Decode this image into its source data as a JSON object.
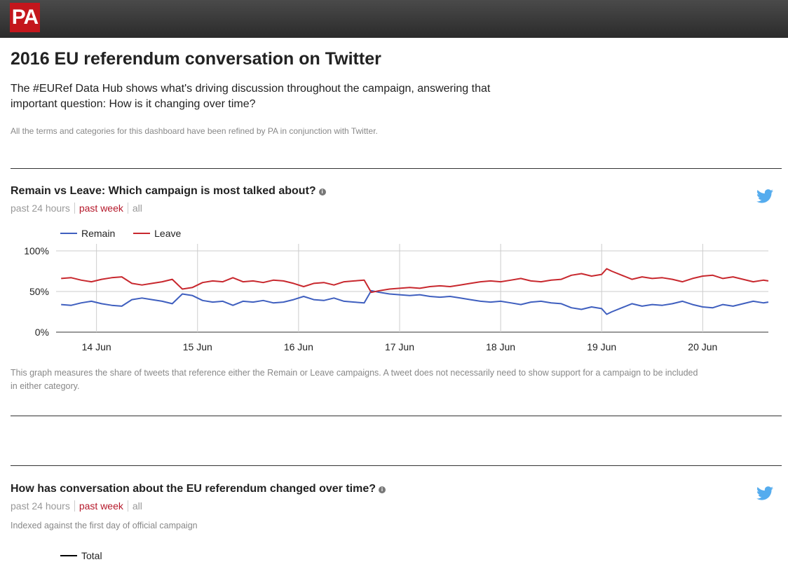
{
  "header": {
    "logo_text": "PA",
    "bg_color": "#333333",
    "logo_color": "#c4161c"
  },
  "page": {
    "title": "2016 EU referendum conversation on Twitter",
    "intro": "The #EURef Data Hub shows what's driving discussion throughout the campaign, answering that important question: How is it changing over time?",
    "note": "All the terms and categories for this dashboard have been refined by PA in conjunction with Twitter."
  },
  "section1": {
    "title": "Remain vs Leave: Which campaign is most talked about?",
    "info_icon": "info-icon",
    "filters": [
      "past 24 hours",
      "past week",
      "all"
    ],
    "active_filter": "past week",
    "share_icon": "twitter-icon",
    "caption": "This graph measures the share of tweets that reference either the Remain or Leave campaigns. A tweet does not necessarily need to show support for a campaign to be included in either category."
  },
  "section2": {
    "title": "How has conversation about the EU referendum changed over time?",
    "info_icon": "info-icon",
    "filters": [
      "past 24 hours",
      "past week",
      "all"
    ],
    "active_filter": "past week",
    "share_icon": "twitter-icon",
    "subtitle": "Indexed against the first day of official campaign",
    "legend": [
      {
        "name": "Total",
        "color": "#000000"
      }
    ]
  },
  "chart_data": {
    "type": "line",
    "ylim": [
      0,
      100
    ],
    "y_ticks": [
      "100%",
      "50%",
      "0%"
    ],
    "x_ticks": [
      "14 Jun",
      "15 Jun",
      "16 Jun",
      "17 Jun",
      "18 Jun",
      "19 Jun",
      "20 Jun"
    ],
    "x_range": [
      13.6,
      20.65
    ],
    "grid": true,
    "legend_position": "top-left",
    "series": [
      {
        "name": "Remain",
        "color": "#3f5fbf",
        "x": [
          13.65,
          13.75,
          13.85,
          13.95,
          14.05,
          14.15,
          14.25,
          14.35,
          14.45,
          14.55,
          14.65,
          14.75,
          14.85,
          14.95,
          15.05,
          15.15,
          15.25,
          15.35,
          15.45,
          15.55,
          15.65,
          15.75,
          15.85,
          15.95,
          16.05,
          16.15,
          16.25,
          16.35,
          16.45,
          16.55,
          16.65,
          16.72,
          16.8,
          16.9,
          17.0,
          17.1,
          17.2,
          17.3,
          17.4,
          17.5,
          17.6,
          17.7,
          17.8,
          17.9,
          18.0,
          18.1,
          18.2,
          18.3,
          18.4,
          18.5,
          18.6,
          18.7,
          18.8,
          18.9,
          19.0,
          19.05,
          19.1,
          19.2,
          19.3,
          19.4,
          19.5,
          19.6,
          19.7,
          19.8,
          19.9,
          20.0,
          20.1,
          20.2,
          20.3,
          20.4,
          20.5,
          20.6,
          20.65
        ],
        "values": [
          34,
          33,
          36,
          38,
          35,
          33,
          32,
          40,
          42,
          40,
          38,
          35,
          47,
          45,
          39,
          37,
          38,
          33,
          38,
          37,
          39,
          36,
          37,
          40,
          44,
          40,
          39,
          42,
          38,
          37,
          36,
          51,
          49,
          47,
          46,
          45,
          46,
          44,
          43,
          44,
          42,
          40,
          38,
          37,
          38,
          36,
          34,
          37,
          38,
          36,
          35,
          30,
          28,
          31,
          29,
          22,
          25,
          30,
          35,
          32,
          34,
          33,
          35,
          38,
          34,
          31,
          30,
          34,
          32,
          35,
          38,
          36,
          37
        ]
      },
      {
        "name": "Leave",
        "color": "#c8282e",
        "x": [
          13.65,
          13.75,
          13.85,
          13.95,
          14.05,
          14.15,
          14.25,
          14.35,
          14.45,
          14.55,
          14.65,
          14.75,
          14.85,
          14.95,
          15.05,
          15.15,
          15.25,
          15.35,
          15.45,
          15.55,
          15.65,
          15.75,
          15.85,
          15.95,
          16.05,
          16.15,
          16.25,
          16.35,
          16.45,
          16.55,
          16.65,
          16.72,
          16.8,
          16.9,
          17.0,
          17.1,
          17.2,
          17.3,
          17.4,
          17.5,
          17.6,
          17.7,
          17.8,
          17.9,
          18.0,
          18.1,
          18.2,
          18.3,
          18.4,
          18.5,
          18.6,
          18.7,
          18.8,
          18.9,
          19.0,
          19.05,
          19.1,
          19.2,
          19.3,
          19.4,
          19.5,
          19.6,
          19.7,
          19.8,
          19.9,
          20.0,
          20.1,
          20.2,
          20.3,
          20.4,
          20.5,
          20.6,
          20.65
        ],
        "values": [
          66,
          67,
          64,
          62,
          65,
          67,
          68,
          60,
          58,
          60,
          62,
          65,
          53,
          55,
          61,
          63,
          62,
          67,
          62,
          63,
          61,
          64,
          63,
          60,
          56,
          60,
          61,
          58,
          62,
          63,
          64,
          49,
          51,
          53,
          54,
          55,
          54,
          56,
          57,
          56,
          58,
          60,
          62,
          63,
          62,
          64,
          66,
          63,
          62,
          64,
          65,
          70,
          72,
          69,
          71,
          78,
          75,
          70,
          65,
          68,
          66,
          67,
          65,
          62,
          66,
          69,
          70,
          66,
          68,
          65,
          62,
          64,
          63
        ]
      }
    ]
  }
}
